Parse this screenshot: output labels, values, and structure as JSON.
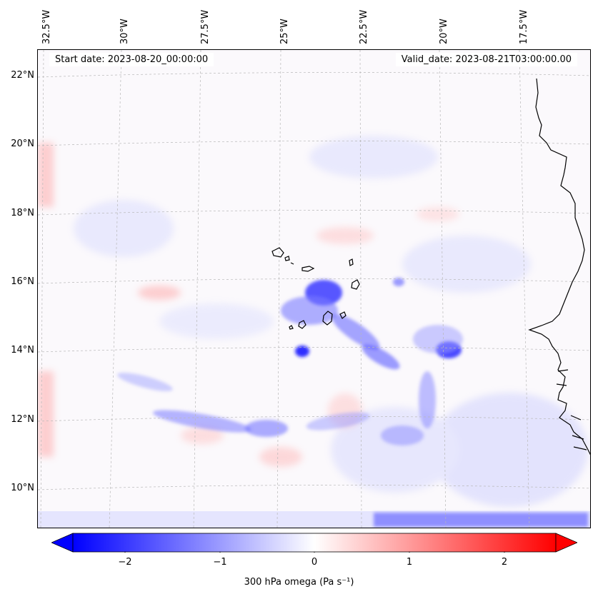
{
  "map": {
    "start_date": "Start date: 2023-08-20_00:00:00",
    "valid_date": "Valid_date: 2023-08-21T03:00:00.00",
    "lon_labels": [
      "32.5°W",
      "30°W",
      "27.5°W",
      "25°W",
      "22.5°W",
      "20°W",
      "17.5°W"
    ],
    "lat_labels": [
      "22°N",
      "20°N",
      "18°N",
      "16°N",
      "14°N",
      "12°N",
      "10°N"
    ],
    "colors": {
      "negative": "#0000ff",
      "positive": "#ff0000",
      "neutral": "#ffffff"
    }
  },
  "colorbar": {
    "label": "300 hPa omega (Pa s⁻¹)",
    "ticks": [
      "−2",
      "−1",
      "0",
      "1",
      "2"
    ],
    "range": [
      -2.75,
      2.75
    ]
  }
}
